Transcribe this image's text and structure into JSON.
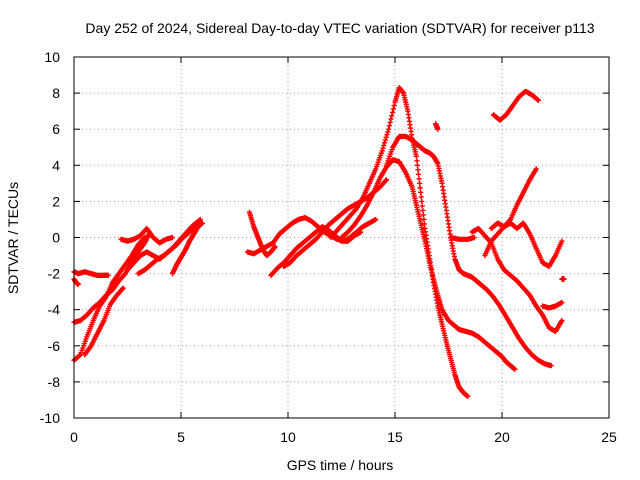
{
  "chart_data": {
    "type": "scatter",
    "title": "Day 252 of 2024, Sidereal Day-to-day VTEC variation (SDTVAR) for receiver p113",
    "xlabel": "GPS time / hours",
    "ylabel": "SDTVAR / TECUs",
    "xlim": [
      0,
      25
    ],
    "ylim": [
      -10,
      10
    ],
    "xticks": [
      0,
      5,
      10,
      15,
      20,
      25
    ],
    "yticks": [
      -10,
      -8,
      -6,
      -4,
      -2,
      0,
      2,
      4,
      6,
      8,
      10
    ],
    "grid": true,
    "marker": "plus",
    "color": "#ff0000",
    "series": [
      {
        "x": [
          0.0,
          0.2,
          0.5,
          0.8,
          1.1,
          1.4,
          1.6
        ],
        "y": [
          -1.9,
          -2.0,
          -1.9,
          -2.0,
          -2.1,
          -2.1,
          -2.1
        ]
      },
      {
        "x": [
          0.0,
          0.1,
          0.2
        ],
        "y": [
          -2.3,
          -2.5,
          -2.6
        ]
      },
      {
        "x": [
          0.0,
          0.3,
          0.6,
          0.9,
          1.2,
          1.5,
          1.8,
          2.1,
          2.4,
          2.7,
          3.0,
          3.3,
          3.5
        ],
        "y": [
          -4.7,
          -4.6,
          -4.3,
          -3.9,
          -3.6,
          -3.2,
          -2.9,
          -2.4,
          -2.0,
          -1.3,
          -0.8,
          -0.3,
          0.2
        ]
      },
      {
        "x": [
          0.0,
          0.3,
          0.6,
          0.9,
          1.2,
          1.5,
          1.8,
          2.1,
          2.4,
          2.7,
          3.0,
          3.3
        ],
        "y": [
          -6.8,
          -6.5,
          -5.5,
          -4.6,
          -3.8,
          -3.3,
          -2.5,
          -2.0,
          -1.5,
          -1.0,
          -0.4,
          0.0
        ]
      },
      {
        "x": [
          0.5,
          0.8,
          1.1,
          1.4,
          1.7,
          2.0,
          2.3
        ],
        "y": [
          -6.5,
          -6.0,
          -5.3,
          -4.6,
          -3.7,
          -3.2,
          -2.8
        ]
      },
      {
        "x": [
          2.2,
          2.5,
          2.8,
          3.1,
          3.4,
          3.7,
          4.0,
          4.3,
          4.6
        ],
        "y": [
          -0.1,
          -0.2,
          -0.1,
          0.1,
          0.5,
          0.0,
          -0.3,
          -0.1,
          0.0
        ]
      },
      {
        "x": [
          2.5,
          2.8,
          3.1,
          3.4,
          3.7,
          4.0,
          4.3,
          4.6,
          4.9,
          5.2,
          5.5,
          5.8
        ],
        "y": [
          -1.8,
          -1.4,
          -1.0,
          -0.8,
          -1.0,
          -1.2,
          -0.9,
          -0.6,
          -0.2,
          0.2,
          0.6,
          0.9
        ]
      },
      {
        "x": [
          3.0,
          3.3,
          3.6,
          3.9,
          4.2,
          4.5,
          4.8,
          5.1,
          5.4,
          5.7,
          5.9
        ],
        "y": [
          -2.0,
          -1.8,
          -1.5,
          -1.2,
          -1.0,
          -0.7,
          -0.4,
          0.0,
          0.3,
          0.7,
          1.0
        ]
      },
      {
        "x": [
          4.6,
          4.8,
          5.0,
          5.2,
          5.4,
          5.6,
          5.8,
          6.0
        ],
        "y": [
          -2.0,
          -1.5,
          -1.1,
          -0.7,
          -0.2,
          0.2,
          0.6,
          0.8
        ]
      },
      {
        "x": [
          8.2,
          8.4,
          8.6,
          8.8,
          9.0,
          9.2,
          9.4
        ],
        "y": [
          1.4,
          0.6,
          0.0,
          -0.6,
          -1.0,
          -0.8,
          -0.5
        ]
      },
      {
        "x": [
          8.1,
          8.4,
          8.7,
          9.0,
          9.3,
          9.6,
          9.9,
          10.2,
          10.5,
          10.8,
          11.1,
          11.4,
          11.7,
          12.0,
          12.3,
          12.6,
          12.9,
          13.2,
          13.5,
          13.8,
          14.1
        ],
        "y": [
          -0.8,
          -0.9,
          -0.7,
          -0.5,
          -0.3,
          0.2,
          0.5,
          0.8,
          1.0,
          1.1,
          0.9,
          0.6,
          0.3,
          0.1,
          -0.1,
          -0.2,
          0.0,
          0.3,
          0.6,
          0.8,
          1.0
        ]
      },
      {
        "x": [
          9.2,
          9.5,
          9.8,
          10.1,
          10.4,
          10.7,
          11.0,
          11.3,
          11.6,
          11.9,
          12.2,
          12.5,
          12.8,
          13.1,
          13.4
        ],
        "y": [
          -2.1,
          -1.7,
          -1.4,
          -1.0,
          -0.6,
          -0.3,
          0.0,
          0.3,
          0.6,
          0.4,
          0.1,
          -0.2,
          -0.2,
          0.1,
          0.3
        ]
      },
      {
        "x": [
          9.8,
          10.1,
          10.4,
          10.7,
          11.0,
          11.3,
          11.6,
          11.9,
          12.2,
          12.5,
          12.8,
          13.1,
          13.4,
          13.7,
          14.0,
          14.3,
          14.6
        ],
        "y": [
          -1.6,
          -1.4,
          -1.0,
          -0.7,
          -0.4,
          -0.1,
          0.3,
          0.7,
          1.0,
          1.3,
          1.6,
          1.8,
          2.0,
          2.2,
          2.5,
          2.8,
          3.2
        ]
      },
      {
        "x": [
          12.0,
          12.3,
          12.6,
          12.9,
          13.2,
          13.5,
          13.8,
          14.1,
          14.4,
          14.7,
          15.0,
          15.2,
          15.4,
          15.6,
          15.8,
          16.0,
          16.2,
          16.4,
          16.6,
          16.8,
          17.0,
          17.2,
          17.4,
          17.6,
          17.8,
          18.0,
          18.2,
          18.4
        ],
        "y": [
          0.0,
          0.4,
          0.8,
          1.2,
          1.6,
          2.2,
          3.0,
          3.8,
          4.8,
          6.0,
          7.5,
          8.3,
          8.0,
          7.0,
          5.5,
          4.5,
          2.5,
          0.5,
          -1.0,
          -2.5,
          -3.8,
          -4.8,
          -5.8,
          -6.7,
          -7.6,
          -8.3,
          -8.6,
          -8.8
        ]
      },
      {
        "x": [
          12.5,
          12.8,
          13.1,
          13.4,
          13.7,
          14.0,
          14.3,
          14.6,
          14.9,
          15.2,
          15.5,
          15.8,
          16.0,
          16.2,
          16.4,
          16.6,
          16.8,
          17.0,
          17.2,
          17.5,
          17.8,
          18.0,
          18.3,
          18.6,
          18.9,
          19.2,
          19.5,
          19.8,
          20.0,
          20.2,
          20.4,
          20.6
        ],
        "y": [
          0.0,
          0.3,
          0.7,
          1.2,
          1.8,
          2.5,
          3.3,
          3.9,
          4.3,
          4.2,
          3.6,
          2.8,
          1.8,
          0.8,
          -0.2,
          -1.3,
          -2.3,
          -3.2,
          -4.0,
          -4.6,
          -4.9,
          -5.1,
          -5.2,
          -5.3,
          -5.5,
          -5.8,
          -6.1,
          -6.4,
          -6.6,
          -6.9,
          -7.1,
          -7.3
        ]
      },
      {
        "x": [
          14.6,
          14.9,
          15.2,
          15.5,
          15.8,
          16.0,
          16.2,
          16.4,
          16.6,
          16.8,
          17.0,
          17.2,
          17.4,
          17.6,
          17.8,
          18.0,
          18.2,
          18.4,
          18.6,
          18.8,
          19.0,
          19.3,
          19.6,
          19.9,
          20.2,
          20.5,
          20.8,
          21.1,
          21.4,
          21.7,
          22.0,
          22.3
        ],
        "y": [
          4.0,
          5.0,
          5.6,
          5.6,
          5.4,
          5.2,
          5.0,
          4.8,
          4.7,
          4.5,
          4.1,
          3.0,
          1.5,
          0.0,
          -1.2,
          -1.8,
          -2.0,
          -2.1,
          -2.2,
          -2.4,
          -2.6,
          -2.9,
          -3.3,
          -3.8,
          -4.4,
          -5.0,
          -5.6,
          -6.1,
          -6.5,
          -6.8,
          -7.0,
          -7.1
        ]
      },
      {
        "x": [
          16.9,
          17.0
        ],
        "y": [
          6.3,
          6.0
        ]
      },
      {
        "x": [
          17.6,
          18.0,
          18.4,
          18.7
        ],
        "y": [
          0.0,
          -0.1,
          -0.1,
          0.0
        ]
      },
      {
        "x": [
          18.6,
          18.9,
          19.2,
          19.5,
          19.8,
          20.1,
          20.4,
          20.7,
          21.0,
          21.3,
          21.6,
          21.9,
          22.2,
          22.5,
          22.8
        ],
        "y": [
          0.3,
          0.5,
          0.1,
          -0.3,
          -1.2,
          -1.8,
          -2.1,
          -2.4,
          -2.8,
          -3.2,
          -3.8,
          -4.3,
          -5.0,
          -5.2,
          -4.6
        ]
      },
      {
        "x": [
          19.2,
          19.5,
          19.8,
          20.1,
          20.4,
          20.7,
          21.0,
          21.3,
          21.6,
          21.9,
          22.2,
          22.5,
          22.8
        ],
        "y": [
          -1.0,
          -0.2,
          0.2,
          0.6,
          0.8,
          0.5,
          0.8,
          0.2,
          -0.6,
          -1.4,
          -1.6,
          -1.0,
          -0.2
        ]
      },
      {
        "x": [
          19.5,
          19.8,
          20.1,
          20.4,
          20.7,
          21.0,
          21.3,
          21.6
        ],
        "y": [
          0.5,
          0.8,
          0.6,
          1.0,
          1.8,
          2.5,
          3.2,
          3.8
        ]
      },
      {
        "x": [
          19.6,
          19.9,
          20.2,
          20.5,
          20.8,
          21.1,
          21.4,
          21.7
        ],
        "y": [
          6.8,
          6.5,
          6.8,
          7.3,
          7.8,
          8.1,
          7.9,
          7.6
        ]
      },
      {
        "x": [
          21.9,
          22.2,
          22.5,
          22.8
        ],
        "y": [
          -3.8,
          -3.9,
          -3.8,
          -3.6
        ]
      },
      {
        "x": [
          22.8,
          22.9
        ],
        "y": [
          -2.3,
          -2.3
        ]
      }
    ]
  }
}
